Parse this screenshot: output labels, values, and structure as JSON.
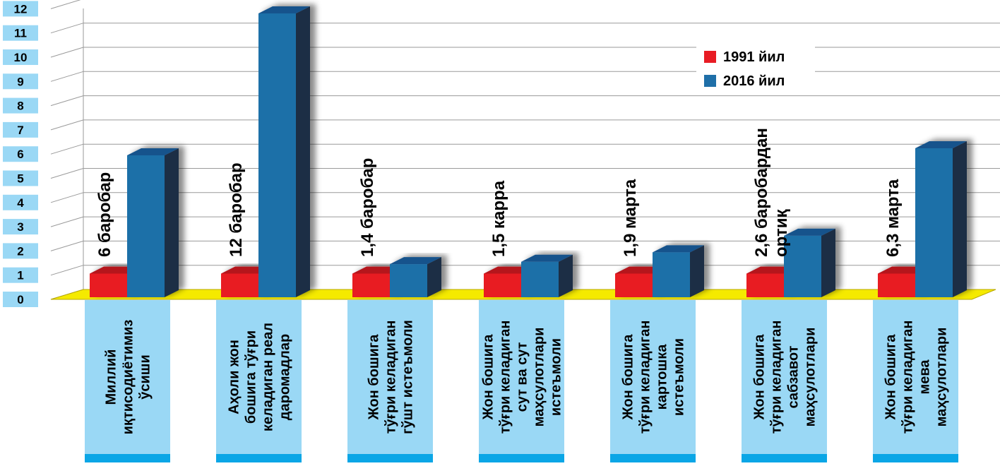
{
  "chart_data": {
    "type": "bar",
    "title": "",
    "xlabel": "",
    "ylabel": "",
    "ylim": [
      0,
      12
    ],
    "yticks": [
      "0",
      "1",
      "2",
      "3",
      "4",
      "5",
      "6",
      "7",
      "8",
      "9",
      "10",
      "11",
      "12"
    ],
    "grid": true,
    "legend_position": "top-right",
    "categories": [
      [
        "Миллий",
        "иқтисодиётимиз",
        "ўсиши"
      ],
      [
        "Аҳоли жон",
        "бошига тўғри",
        "келадиган реал",
        "даромадлар"
      ],
      [
        "Жон бошига",
        "тўғри келадиган",
        "гўшт истеъмоли"
      ],
      [
        "Жон бошига",
        "тўғри келадиган",
        "сут ва сут",
        "маҳсулотлари",
        "истеъмоли"
      ],
      [
        "Жон бошига",
        "тўғри келадиган",
        "картошка",
        "истеъмоли"
      ],
      [
        "Жон бошига",
        "тўғри келадиган",
        "сабзавот",
        "маҳсулотлари"
      ],
      [
        "Жон бошига",
        "тўғри келадиган",
        "мева",
        "маҳсулотлари"
      ]
    ],
    "series": [
      {
        "name": "1991 йил",
        "color": "#e81c24",
        "values": [
          1,
          1,
          1,
          1,
          1,
          1,
          1
        ]
      },
      {
        "name": "2016 йил",
        "color": "#1f6fa8",
        "values": [
          6,
          12,
          1.4,
          1.5,
          1.9,
          2.6,
          6.3
        ]
      }
    ],
    "annotations": [
      [
        "6 баробар"
      ],
      [
        "12 баробар"
      ],
      [
        "1,4 баробар"
      ],
      [
        "1,5 карра"
      ],
      [
        "1,9 марта"
      ],
      [
        "2,6 баробардан",
        "ортиқ"
      ],
      [
        "6,3 марта"
      ]
    ]
  },
  "colors": {
    "floor": "#f5ea00",
    "category_box": "#9ad8f5",
    "category_strip": "#0aa6e6",
    "tick_badge": "#9ad8f5",
    "grid": "#9a9a9a"
  }
}
